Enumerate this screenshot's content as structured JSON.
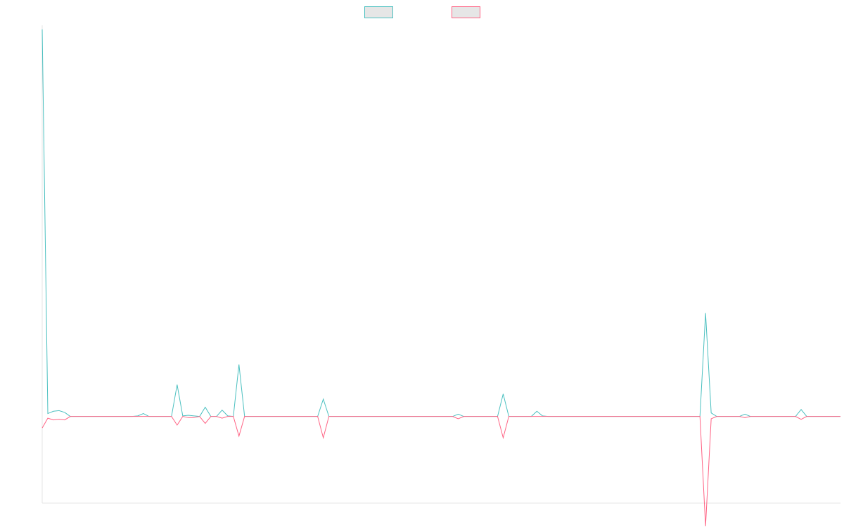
{
  "chart_data": {
    "type": "line",
    "title": "",
    "xlabel": "",
    "ylabel": "",
    "grid": false,
    "legend_position": "top",
    "ylim": [
      -150,
      677
    ],
    "x": [
      0,
      1,
      2,
      3,
      4,
      5,
      6,
      7,
      8,
      9,
      10,
      11,
      12,
      13,
      14,
      15,
      16,
      17,
      18,
      19,
      20,
      21,
      22,
      23,
      24,
      25,
      26,
      27,
      28,
      29,
      30,
      31,
      32,
      33,
      34,
      35,
      36,
      37,
      38,
      39,
      40,
      41,
      42,
      43,
      44,
      45,
      46,
      47,
      48,
      49,
      50,
      51,
      52,
      53,
      54,
      55,
      56,
      57,
      58,
      59,
      60,
      61,
      62,
      63,
      64,
      65,
      66,
      67,
      68,
      69,
      70,
      71,
      72,
      73,
      74,
      75,
      76,
      77,
      78,
      79,
      80,
      81,
      82,
      83,
      84,
      85,
      86,
      87,
      88,
      89,
      90,
      91,
      92,
      93,
      94,
      95,
      96,
      97,
      98,
      99,
      100,
      101,
      102,
      103,
      104,
      105,
      106,
      107,
      108,
      109,
      110,
      111,
      112,
      113,
      114,
      115,
      116,
      117,
      118,
      119,
      120,
      121,
      122,
      123,
      124,
      125,
      126,
      127,
      128,
      129,
      130,
      131,
      132,
      133,
      134,
      135,
      136,
      137,
      138,
      139,
      140,
      141,
      142
    ],
    "series": [
      {
        "color": "#4bc0c0",
        "values": [
          670,
          5,
          9,
          10,
          7,
          0,
          0,
          0,
          0,
          0,
          0,
          0,
          0,
          0,
          0,
          0,
          0,
          1,
          5,
          0,
          0,
          0,
          0,
          0,
          55,
          1,
          2,
          1,
          0,
          16,
          0,
          0,
          11,
          1,
          0,
          90,
          0,
          0,
          0,
          0,
          0,
          0,
          0,
          0,
          0,
          0,
          0,
          0,
          0,
          0,
          30,
          0,
          0,
          0,
          0,
          0,
          0,
          0,
          0,
          0,
          0,
          0,
          0,
          0,
          0,
          0,
          0,
          0,
          0,
          0,
          0,
          0,
          0,
          0,
          4,
          0,
          0,
          0,
          0,
          0,
          0,
          0,
          39,
          0,
          0,
          0,
          0,
          0,
          9,
          1,
          0,
          0,
          0,
          0,
          0,
          0,
          0,
          0,
          0,
          0,
          0,
          0,
          0,
          0,
          0,
          0,
          0,
          0,
          0,
          0,
          0,
          0,
          0,
          0,
          0,
          0,
          0,
          0,
          179,
          6,
          0,
          0,
          0,
          0,
          0,
          4,
          0,
          0,
          0,
          0,
          0,
          0,
          0,
          0,
          0,
          12,
          0,
          0,
          0,
          0,
          0,
          0,
          0
        ]
      },
      {
        "color": "#ff6384",
        "values": [
          -20,
          -3,
          -6,
          -5,
          -6,
          0,
          0,
          0,
          0,
          0,
          0,
          0,
          0,
          0,
          0,
          0,
          0,
          0,
          0,
          0,
          0,
          0,
          0,
          0,
          -15,
          0,
          -2,
          -2,
          0,
          -12,
          0,
          0,
          -3,
          0,
          0,
          -34,
          0,
          0,
          0,
          0,
          0,
          0,
          0,
          0,
          0,
          0,
          0,
          0,
          0,
          0,
          -37,
          0,
          0,
          0,
          0,
          0,
          0,
          0,
          0,
          0,
          0,
          0,
          0,
          0,
          0,
          0,
          0,
          0,
          0,
          0,
          0,
          0,
          0,
          0,
          -4,
          0,
          0,
          0,
          0,
          0,
          0,
          0,
          -37,
          0,
          0,
          0,
          0,
          0,
          0,
          0,
          0,
          0,
          0,
          0,
          0,
          0,
          0,
          0,
          0,
          0,
          0,
          0,
          0,
          0,
          0,
          0,
          0,
          0,
          0,
          0,
          0,
          0,
          0,
          0,
          0,
          0,
          0,
          0,
          -190,
          -4,
          0,
          0,
          0,
          0,
          0,
          -2,
          0,
          0,
          0,
          0,
          0,
          0,
          0,
          0,
          0,
          -5,
          0,
          0,
          0,
          0,
          0,
          0,
          0
        ]
      }
    ]
  }
}
